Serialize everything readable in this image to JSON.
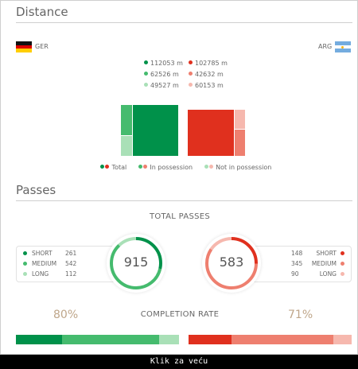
{
  "distance": {
    "title": "Distance",
    "home": {
      "code": "GER",
      "flag": "germany-flag-icon"
    },
    "away": {
      "code": "ARG",
      "flag": "argentina-flag-icon"
    },
    "home_values": [
      "112053 m",
      "62526 m",
      "49527 m"
    ],
    "away_values": [
      "102785 m",
      "42632 m",
      "60153 m"
    ],
    "legend": {
      "total": "Total",
      "in_possession": "In possession",
      "not_in_possession": "Not in possession"
    }
  },
  "passes": {
    "title": "Passes",
    "total_title": "TOTAL PASSES",
    "home": {
      "total": "915",
      "rows": [
        {
          "label": "SHORT",
          "value": "261"
        },
        {
          "label": "MEDIUM",
          "value": "542"
        },
        {
          "label": "LONG",
          "value": "112"
        }
      ]
    },
    "away": {
      "total": "583",
      "rows": [
        {
          "label": "SHORT",
          "value": "148"
        },
        {
          "label": "MEDIUM",
          "value": "345"
        },
        {
          "label": "LONG",
          "value": "90"
        }
      ]
    },
    "completion_title": "COMPLETION RATE",
    "home_completion": "80%",
    "away_completion": "71%"
  },
  "footer": {
    "text": "Klik za veću"
  },
  "colors": {
    "home_dark": "#00914a",
    "home_mid": "#45bb6e",
    "home_light": "#a9e0b7",
    "away_dark": "#e0301e",
    "away_mid": "#ee7f6f",
    "away_light": "#f6b8ae"
  }
}
